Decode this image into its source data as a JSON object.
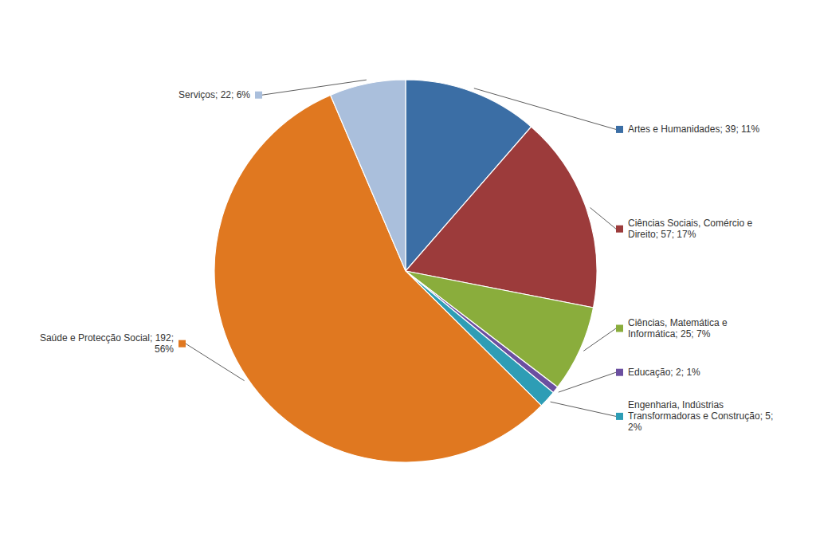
{
  "chart_data": {
    "type": "pie",
    "categories": [
      "Artes e Humanidades; 39; 11%",
      "Ciências Sociais, Comércio e\nDireito; 57; 17%",
      "Ciências, Matemática e\nInformática; 25; 7%",
      "Educação; 2; 1%",
      "Engenharia, Indústrias\nTransformadoras e Construção; 5;\n2%",
      "Saúde e Protecção Social; 192;\n56%",
      "Serviços; 22; 6%"
    ],
    "values": [
      39,
      57,
      25,
      2,
      5,
      192,
      22
    ],
    "colors": [
      "#3B6EA5",
      "#9C3B3B",
      "#8AAD3C",
      "#6B4FA0",
      "#2E9DB5",
      "#E07820",
      "#AABFDC"
    ]
  }
}
